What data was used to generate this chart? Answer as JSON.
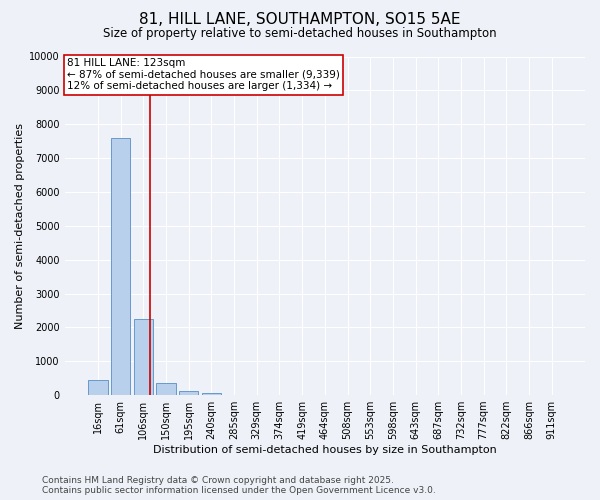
{
  "title": "81, HILL LANE, SOUTHAMPTON, SO15 5AE",
  "subtitle": "Size of property relative to semi-detached houses in Southampton",
  "xlabel": "Distribution of semi-detached houses by size in Southampton",
  "ylabel": "Number of semi-detached properties",
  "categories": [
    "16sqm",
    "61sqm",
    "106sqm",
    "150sqm",
    "195sqm",
    "240sqm",
    "285sqm",
    "329sqm",
    "374sqm",
    "419sqm",
    "464sqm",
    "508sqm",
    "553sqm",
    "598sqm",
    "643sqm",
    "687sqm",
    "732sqm",
    "777sqm",
    "822sqm",
    "866sqm",
    "911sqm"
  ],
  "values": [
    450,
    7600,
    2250,
    350,
    120,
    60,
    5,
    0,
    0,
    0,
    0,
    0,
    0,
    0,
    0,
    0,
    0,
    0,
    0,
    0,
    0
  ],
  "bar_color": "#b8d0eb",
  "bar_edge_color": "#6699cc",
  "vline_x_index": 2.28,
  "vline_color": "#cc0000",
  "property_label": "81 HILL LANE: 123sqm",
  "annotation_line1": "← 87% of semi-detached houses are smaller (9,339)",
  "annotation_line2": "12% of semi-detached houses are larger (1,334) →",
  "ylim": [
    0,
    10000
  ],
  "yticks": [
    0,
    1000,
    2000,
    3000,
    4000,
    5000,
    6000,
    7000,
    8000,
    9000,
    10000
  ],
  "footer_line1": "Contains HM Land Registry data © Crown copyright and database right 2025.",
  "footer_line2": "Contains public sector information licensed under the Open Government Licence v3.0.",
  "bg_color": "#eef2f8",
  "plot_bg_color": "#eef2f8",
  "grid_color": "#ffffff",
  "title_fontsize": 11,
  "subtitle_fontsize": 8.5,
  "axis_label_fontsize": 8,
  "tick_fontsize": 7,
  "footer_fontsize": 6.5,
  "annotation_fontsize": 7.5
}
